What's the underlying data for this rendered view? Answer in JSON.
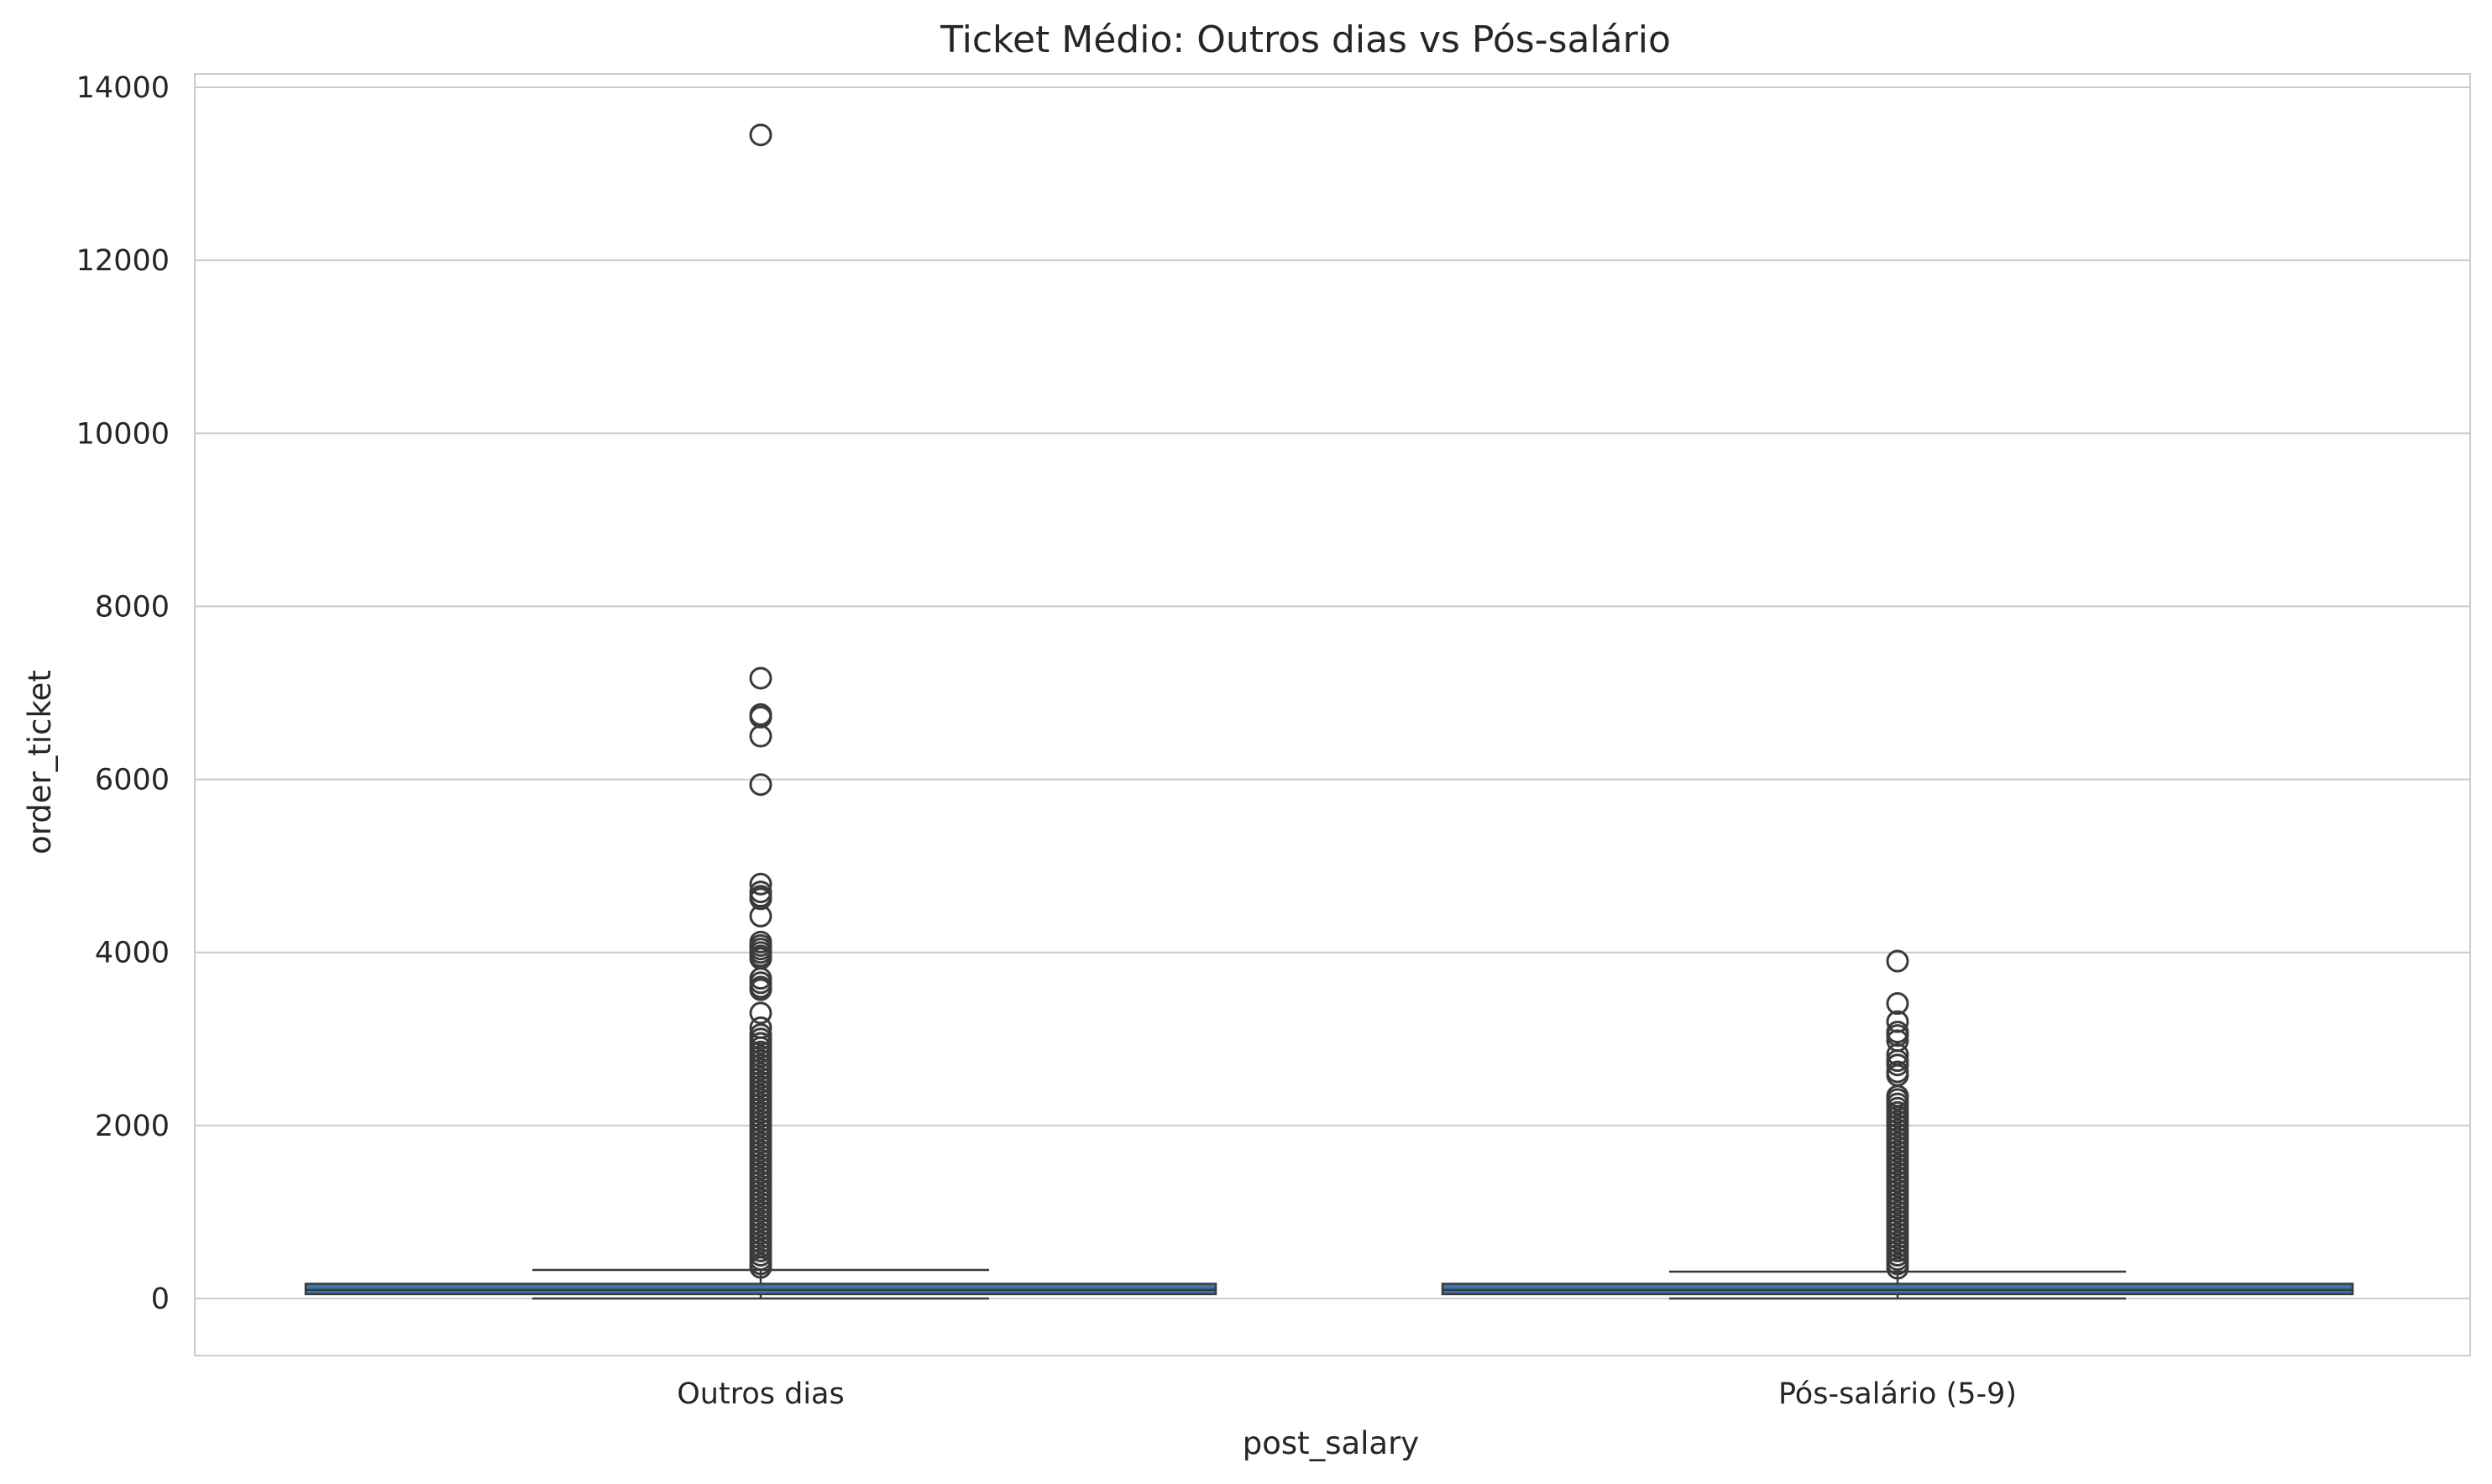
{
  "chart_data": {
    "type": "box",
    "title": "Ticket Médio: Outros dias vs Pós-salário",
    "xlabel": "post_salary",
    "ylabel": "order_ticket",
    "ylim": [
      -650,
      14150
    ],
    "yticks": [
      0,
      2000,
      4000,
      6000,
      8000,
      10000,
      12000,
      14000
    ],
    "grid": true,
    "categories": [
      "Outros dias",
      "Pós-salário (5-9)"
    ],
    "boxes": [
      {
        "category": "Outros dias",
        "whisker_low": 0,
        "q1": 50,
        "median": 100,
        "q3": 170,
        "whisker_high": 330,
        "outliers": [
          13450,
          7170,
          6750,
          6720,
          6500,
          5940,
          4790,
          4700,
          4650,
          4620,
          4420,
          4120,
          4080,
          4040,
          4000,
          3960,
          3930,
          3700,
          3650,
          3600,
          3570,
          3300,
          3130,
          3050,
          3000,
          2950,
          2900,
          2850,
          2800,
          2750,
          2700,
          2650,
          2600,
          2550,
          2500,
          2450,
          2400,
          2350,
          2300,
          2250,
          2200,
          2150,
          2100,
          2050,
          2000,
          1950,
          1900,
          1850,
          1800,
          1750,
          1700,
          1650,
          1600,
          1550,
          1500,
          1450,
          1400,
          1350,
          1300,
          1250,
          1200,
          1150,
          1100,
          1050,
          1000,
          950,
          900,
          850,
          800,
          750,
          700,
          650,
          600,
          550,
          500,
          450,
          400,
          360
        ]
      },
      {
        "category": "Pós-salário (5-9)",
        "whisker_low": 0,
        "q1": 50,
        "median": 100,
        "q3": 170,
        "whisker_high": 310,
        "outliers": [
          3900,
          3410,
          3200,
          3080,
          3040,
          2980,
          2820,
          2750,
          2700,
          2620,
          2580,
          2340,
          2300,
          2250,
          2200,
          2150,
          2100,
          2050,
          2000,
          1950,
          1900,
          1850,
          1800,
          1750,
          1700,
          1650,
          1600,
          1550,
          1500,
          1450,
          1400,
          1350,
          1300,
          1250,
          1200,
          1150,
          1100,
          1050,
          1000,
          950,
          900,
          850,
          800,
          750,
          700,
          650,
          600,
          550,
          500,
          450,
          400,
          350
        ]
      }
    ],
    "colors": {
      "box_fill": "#3b75af",
      "line": "#3a3a3a",
      "grid": "#cccccc",
      "frame": "#cccccc",
      "text": "#262626"
    }
  }
}
